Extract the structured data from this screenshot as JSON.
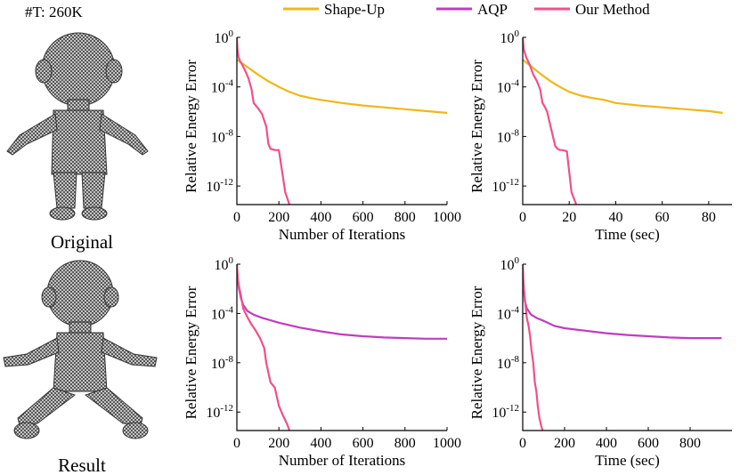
{
  "figure": {
    "header": "#T: 260K",
    "caption_original": "Original",
    "caption_result": "Result",
    "legend": [
      {
        "label": "Shape-Up",
        "color": "#f0b816"
      },
      {
        "label": "AQP",
        "color": "#c03cc0"
      },
      {
        "label": "Our Method",
        "color": "#f0508a"
      }
    ]
  },
  "chart_data": [
    {
      "type": "line",
      "xlabel": "Number of Iterations",
      "ylabel": "Relative Energy Error",
      "xlim": [
        0,
        1000
      ],
      "ylim_exp": [
        -13.5,
        0
      ],
      "yscale": "log",
      "xticks": [
        0,
        200,
        400,
        600,
        800,
        1000
      ],
      "yticks": [
        {
          "base": "10",
          "exp": "0",
          "value": 0
        },
        {
          "base": "10",
          "exp": "-4",
          "value": -4
        },
        {
          "base": "10",
          "exp": "-8",
          "value": -8
        },
        {
          "base": "10",
          "exp": "-12",
          "value": -12
        }
      ],
      "series": [
        {
          "name": "Shape-Up",
          "color": "#f0b816",
          "x": [
            0,
            50,
            100,
            150,
            200,
            250,
            300,
            350,
            400,
            500,
            600,
            700,
            800,
            900,
            1000
          ],
          "y": [
            -1.8,
            -2.4,
            -3.0,
            -3.55,
            -4.0,
            -4.4,
            -4.7,
            -4.9,
            -5.05,
            -5.3,
            -5.5,
            -5.65,
            -5.8,
            -5.95,
            -6.1
          ]
        },
        {
          "name": "Our Method",
          "color": "#f0508a",
          "x": [
            0,
            3,
            8,
            15,
            25,
            40,
            55,
            70,
            80,
            100,
            120,
            140,
            150,
            160,
            180,
            200,
            230,
            250
          ],
          "y": [
            0,
            -1.0,
            -1.6,
            -1.9,
            -2.2,
            -2.7,
            -3.3,
            -4.2,
            -5.3,
            -5.7,
            -6.2,
            -7.2,
            -8.6,
            -9.0,
            -9.1,
            -9.1,
            -12.5,
            -13.5
          ]
        }
      ]
    },
    {
      "type": "line",
      "xlabel": "Time (sec)",
      "ylabel": "Relative Energy Error",
      "xlim": [
        0,
        90
      ],
      "ylim_exp": [
        -13.5,
        0
      ],
      "yscale": "log",
      "xticks": [
        0,
        20,
        40,
        60,
        80
      ],
      "yticks": [
        {
          "base": "10",
          "exp": "0",
          "value": 0
        },
        {
          "base": "10",
          "exp": "-4",
          "value": -4
        },
        {
          "base": "10",
          "exp": "-8",
          "value": -8
        },
        {
          "base": "10",
          "exp": "-12",
          "value": -12
        }
      ],
      "series": [
        {
          "name": "Shape-Up",
          "color": "#f0b816",
          "x": [
            0,
            4,
            8,
            12,
            16,
            20,
            25,
            30,
            35,
            40,
            50,
            60,
            70,
            80,
            86
          ],
          "y": [
            -1.8,
            -2.4,
            -3.0,
            -3.55,
            -4.0,
            -4.4,
            -4.7,
            -4.9,
            -5.05,
            -5.3,
            -5.5,
            -5.65,
            -5.8,
            -5.95,
            -6.1
          ]
        },
        {
          "name": "Our Method",
          "color": "#f0508a",
          "x": [
            0,
            0.5,
            1.5,
            3,
            4.5,
            6,
            7.5,
            8.5,
            9.5,
            10.5,
            12,
            14,
            15,
            16,
            17,
            19,
            21,
            23
          ],
          "y": [
            0,
            -1.0,
            -1.6,
            -2.2,
            -3.0,
            -3.5,
            -4.2,
            -5.3,
            -5.6,
            -6.0,
            -7.2,
            -8.8,
            -9.0,
            -9.1,
            -9.1,
            -9.2,
            -12.5,
            -13.5
          ]
        }
      ]
    },
    {
      "type": "line",
      "xlabel": "Number of Iterations",
      "ylabel": "Relative Energy Error",
      "xlim": [
        0,
        1000
      ],
      "ylim_exp": [
        -13.5,
        0
      ],
      "yscale": "log",
      "xticks": [
        0,
        200,
        400,
        600,
        800,
        1000
      ],
      "yticks": [
        {
          "base": "10",
          "exp": "0",
          "value": 0
        },
        {
          "base": "10",
          "exp": "-4",
          "value": -4
        },
        {
          "base": "10",
          "exp": "-8",
          "value": -8
        },
        {
          "base": "10",
          "exp": "-12",
          "value": -12
        }
      ],
      "series": [
        {
          "name": "AQP",
          "color": "#c03cc0",
          "x": [
            0,
            10,
            20,
            30,
            50,
            80,
            120,
            200,
            300,
            400,
            500,
            600,
            700,
            800,
            900,
            1000
          ],
          "y": [
            -0.8,
            -2.0,
            -2.8,
            -3.3,
            -3.8,
            -4.1,
            -4.35,
            -4.75,
            -5.15,
            -5.45,
            -5.7,
            -5.85,
            -5.95,
            -6.0,
            -6.05,
            -6.05
          ]
        },
        {
          "name": "Our Method",
          "color": "#f0508a",
          "x": [
            0,
            5,
            10,
            20,
            30,
            50,
            70,
            90,
            110,
            130,
            140,
            160,
            180,
            200,
            220,
            240,
            250
          ],
          "y": [
            0,
            -1.2,
            -1.8,
            -2.6,
            -3.6,
            -4.3,
            -4.9,
            -5.4,
            -6.0,
            -6.8,
            -8.0,
            -9.6,
            -10.0,
            -11.5,
            -12.3,
            -13.0,
            -13.5
          ]
        }
      ]
    },
    {
      "type": "line",
      "xlabel": "Time (sec)",
      "ylabel": "Relative Energy Error",
      "xlim": [
        0,
        1000
      ],
      "ylim_exp": [
        -13.5,
        0
      ],
      "yscale": "log",
      "xticks": [
        0,
        200,
        400,
        600,
        800
      ],
      "yticks": [
        {
          "base": "10",
          "exp": "0",
          "value": 0
        },
        {
          "base": "10",
          "exp": "-4",
          "value": -4
        },
        {
          "base": "10",
          "exp": "-8",
          "value": -8
        },
        {
          "base": "10",
          "exp": "-12",
          "value": -12
        }
      ],
      "series": [
        {
          "name": "AQP",
          "color": "#c03cc0",
          "x": [
            0,
            5,
            10,
            20,
            40,
            70,
            100,
            150,
            200,
            300,
            400,
            500,
            600,
            700,
            800,
            950
          ],
          "y": [
            -0.8,
            -2.0,
            -3.0,
            -3.6,
            -4.1,
            -4.4,
            -4.6,
            -5.0,
            -5.2,
            -5.4,
            -5.6,
            -5.75,
            -5.85,
            -5.95,
            -6.0,
            -6.0
          ]
        },
        {
          "name": "Our Method",
          "color": "#f0508a",
          "x": [
            0,
            3,
            6,
            10,
            15,
            20,
            28,
            35,
            42,
            50,
            58,
            65,
            72,
            80,
            88,
            95
          ],
          "y": [
            0,
            -1.2,
            -2.0,
            -2.8,
            -3.6,
            -4.4,
            -5.0,
            -5.8,
            -7.0,
            -8.0,
            -9.6,
            -10.3,
            -11.5,
            -12.5,
            -13.1,
            -13.5
          ]
        }
      ]
    }
  ]
}
